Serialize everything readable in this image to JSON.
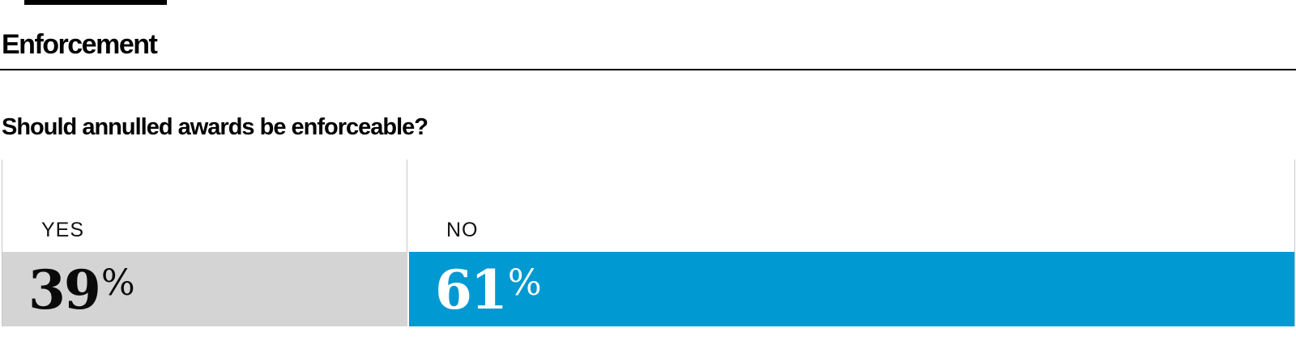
{
  "header": {
    "section_title": "Enforcement"
  },
  "question": "Should annulled awards be enforceable?",
  "chart_data": {
    "type": "bar",
    "orientation": "horizontal-stacked",
    "section": "Enforcement",
    "title": "Should annulled awards be enforceable?",
    "categories": [
      "YES",
      "NO"
    ],
    "values": [
      39,
      61
    ],
    "unit": "%",
    "value_labels": [
      "39%",
      "61%"
    ],
    "colors": {
      "yes_segment": "#d4d4d4",
      "no_segment": "#0099d2",
      "yes_value_text": "#000000",
      "no_value_text": "#ffffff",
      "gridline": "#c8c8c8",
      "rule": "#000000"
    },
    "grid": "vertical column dividers above bar",
    "legend_position": "none"
  },
  "segments": [
    {
      "label": "YES",
      "value": "39",
      "pct": "%"
    },
    {
      "label": "NO",
      "value": "61",
      "pct": "%"
    }
  ]
}
